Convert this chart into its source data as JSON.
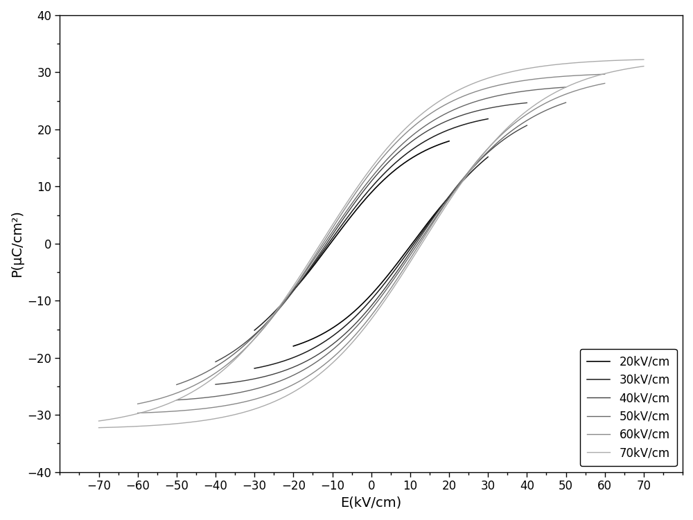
{
  "title": "",
  "xlabel": "E(kV/cm)",
  "ylabel": "P(μC/cm²)",
  "xlim": [
    -80,
    80
  ],
  "ylim": [
    -40,
    40
  ],
  "xticks": [
    -70,
    -60,
    -50,
    -40,
    -30,
    -20,
    -10,
    0,
    10,
    20,
    30,
    40,
    50,
    60,
    70
  ],
  "yticks": [
    -40,
    -30,
    -20,
    -10,
    0,
    10,
    20,
    30,
    40
  ],
  "curves": [
    {
      "label": "20kV/cm",
      "E_max": 20,
      "Pr": 19.0,
      "Ec": 10.5,
      "Psat": 20.5,
      "color": "#000000",
      "linewidth": 1.2
    },
    {
      "label": "30kV/cm",
      "E_max": 30,
      "Pr": 21.5,
      "Ec": 11.0,
      "Psat": 23.5,
      "color": "#1a1a1a",
      "linewidth": 1.1
    },
    {
      "label": "40kV/cm",
      "E_max": 40,
      "Pr": 23.5,
      "Ec": 11.5,
      "Psat": 25.5,
      "color": "#404040",
      "linewidth": 1.0
    },
    {
      "label": "50kV/cm",
      "E_max": 50,
      "Pr": 25.5,
      "Ec": 12.0,
      "Psat": 28.0,
      "color": "#666666",
      "linewidth": 1.0
    },
    {
      "label": "60kV/cm",
      "E_max": 60,
      "Pr": 27.5,
      "Ec": 12.5,
      "Psat": 30.0,
      "color": "#888888",
      "linewidth": 1.0
    },
    {
      "label": "70kV/cm",
      "E_max": 70,
      "Pr": 29.5,
      "Ec": 13.0,
      "Psat": 32.5,
      "color": "#aaaaaa",
      "linewidth": 1.0
    }
  ],
  "legend_loc": "lower right",
  "figsize": [
    10.0,
    7.51
  ],
  "dpi": 100
}
